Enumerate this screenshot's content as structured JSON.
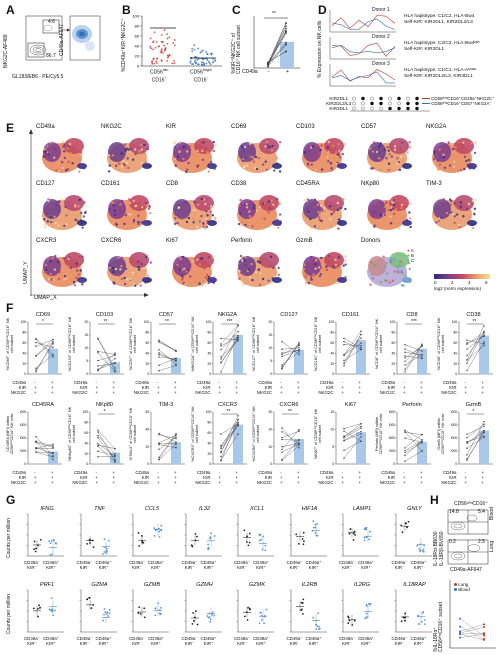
{
  "panels": {
    "A": {
      "letter": "A",
      "ylabel": "NKG2C-AF488",
      "xlabel": "GL183/EB6 - PE/Cy5.5",
      "gate_top": "4.6",
      "gate_bottom": "86.7",
      "ylabel2": "CD49a-AF647"
    },
    "B": {
      "letter": "B",
      "ylabel": "%CD49a⁺KIR⁺NKG2C⁺",
      "cat1_line1": "CD56",
      "cat1_sup1": "dim",
      "cat1_line2": "CD16",
      "cat1_sup2": "+",
      "cat2_line1": "CD56",
      "cat2_sup1": "bright",
      "cat2_line2": "CD16",
      "cat2_sup2": "-",
      "yticks": [
        "100",
        "80",
        "60",
        "40",
        "20",
        "0"
      ],
      "colors": {
        "group1": "#c0392b",
        "group2": "#2f6fb5"
      }
    },
    "C": {
      "letter": "C",
      "ylabel_line1": "%KIR⁺NKG2C⁺ of",
      "ylabel_line2": "CD16⁺ NK cell subset",
      "sig": "**",
      "xlabel": "CD49a",
      "x_minus": "-",
      "x_plus": "+",
      "yticks": [
        "100",
        "80",
        "60",
        "40",
        "20",
        "0"
      ]
    },
    "D": {
      "letter": "D",
      "ylabel": "% Expression on NK cells",
      "donors": [
        {
          "name": "Donor 1",
          "hla": "HLA haplotype: C1/C2, HLA-Bw4",
          "kir": "Self-KIR: KIR2DL1, KIR2DL2/L3"
        },
        {
          "name": "Donor 2",
          "hla": "HLA haplotype: C2/C2, HLA-Bw4ᴵᵍᴵᵒ",
          "kir": "Self-KIR: KIR2DL1"
        },
        {
          "name": "Donor 3",
          "hla": "HLA haplotype: C1/C1, HLA-Aˢᵘᵖᵉʳ",
          "kir": "Self-KIR: KIR2DL2/L3, KIR3DL1"
        }
      ],
      "rows": [
        "KIR2DL1",
        "KIR2DL2/L3",
        "KIR3DL1"
      ],
      "legend1": "CD56ᵈⁱᵐCD16⁺CD49a⁺NKG2C⁺",
      "legend2": "CD56ᵈⁱᵐCD16⁺CD57⁺NKG2A⁻",
      "colors": {
        "line1": "#c0392b",
        "line2": "#2f6fb5"
      }
    },
    "E": {
      "letter": "E",
      "axis_y": "UMAP_Y",
      "axis_x": "UMAP_X",
      "markers": [
        "CD49a",
        "NKG2C",
        "KIR",
        "CD69",
        "CD103",
        "CD57",
        "NKG2A",
        "CD127",
        "CD161",
        "CD8",
        "CD38",
        "CD45RA",
        "NKp80",
        "TIM-3",
        "CXCR3",
        "CXCR6",
        "Ki67",
        "Perforin",
        "GzmB",
        "Donors"
      ],
      "donor_legend": [
        "A",
        "B",
        "C"
      ],
      "colorbar_label": "log2 (norm expression)",
      "colorbar_ticks": [
        "0",
        "2",
        "4",
        "6"
      ]
    },
    "F": {
      "letter": "F",
      "row_labels": [
        "CD49a",
        "KIR",
        "NKG2C"
      ],
      "row_values": {
        "col1": [
          "-",
          "+",
          "+"
        ],
        "col2": [
          "+",
          "+",
          "+"
        ]
      },
      "plots": [
        {
          "title": "CD69",
          "ylabel": "%CD69⁺ of CD56ᵈⁱᵐCD16⁺ NK cell subset",
          "sig": "*",
          "yticks": [
            "100",
            "80",
            "60",
            "40",
            "20",
            "0"
          ]
        },
        {
          "title": "CD103",
          "ylabel": "%CD103⁺ of CD56ᵈⁱᵐCD16⁺ NK cell subset",
          "sig": "**",
          "yticks": [
            "20",
            "15",
            "10",
            "5",
            "0"
          ]
        },
        {
          "title": "CD57",
          "ylabel": "%CD57⁺ of CD56ᵈⁱᵐCD16⁺ NK cell subset",
          "sig": "**",
          "yticks": [
            "100",
            "80",
            "60",
            "40",
            "20",
            "0"
          ]
        },
        {
          "title": "NKG2A",
          "ylabel": "%NKG2A⁺ of CD56ᵈⁱᵐCD16⁺ NK cell subset",
          "sig": "***",
          "yticks": [
            "100",
            "80",
            "60",
            "40",
            "20",
            "0"
          ]
        },
        {
          "title": "CD127",
          "ylabel": "%CD127⁺ of CD56ᵈⁱᵐCD16⁺ NK cell subset",
          "sig": "",
          "yticks": [
            "20",
            "15",
            "10",
            "5",
            "0"
          ]
        },
        {
          "title": "CD161",
          "ylabel": "%CD161⁺ of CD56ᵈⁱᵐCD16⁺ NK cell subset",
          "sig": "",
          "yticks": [
            "100",
            "80",
            "60",
            "40",
            "20",
            "0"
          ]
        },
        {
          "title": "CD8",
          "ylabel": "%CD8⁺ of CD56ᵈⁱᵐCD16⁺ NK cell subset",
          "sig": "***",
          "yticks": [
            "100",
            "80",
            "60",
            "40",
            "20",
            "0"
          ]
        },
        {
          "title": "CD38",
          "ylabel": "%CD38⁺ of CD56ᵈⁱᵐCD16⁺ NK cell subset",
          "sig": "**",
          "yticks": [
            "100",
            "80",
            "60",
            "40",
            "20",
            "0"
          ]
        },
        {
          "title": "CD45RA",
          "ylabel": "CD45RA (MFI) within CD56ᵈⁱᵐCD16⁺ NK cells",
          "sig": "",
          "yticks": [
            "8000",
            "6000",
            "4000",
            "2000",
            "0"
          ]
        },
        {
          "title": "NKp80",
          "ylabel": "%NKp80⁺ of CD56ᵈⁱᵐCD16⁺ NK cell subset",
          "sig": "*",
          "yticks": [
            "100",
            "80",
            "60",
            "40",
            "20",
            "0"
          ]
        },
        {
          "title": "TIM-3",
          "ylabel": "%TIM-3⁺ of CD56ᵈⁱᵐCD16⁺ NK cell subset",
          "sig": "",
          "yticks": [
            "60",
            "40",
            "20",
            "0"
          ]
        },
        {
          "title": "CXCR3",
          "ylabel": "%CXCR3⁺ of CD56ᵈⁱᵐCD16⁺ NK cell subset",
          "sig": "**",
          "yticks": [
            "100",
            "80",
            "60",
            "40",
            "20",
            "0"
          ]
        },
        {
          "title": "CXCR6",
          "ylabel": "%CXCR6⁺ of CD56ᵈⁱᵐCD16⁺ NK cell subset",
          "sig": "**",
          "yticks": [
            "30",
            "20",
            "10",
            "0"
          ]
        },
        {
          "title": "Ki67",
          "ylabel": "%Ki67⁺ of CD56ᵈⁱᵐCD16⁺ NK cell subset",
          "sig": "",
          "yticks": [
            "15",
            "10",
            "5",
            "0"
          ]
        },
        {
          "title": "Perforin",
          "ylabel": "Perforin (MFI) within CD56ᵈⁱᵐCD16⁺ NK cells",
          "sig": "",
          "yticks": [
            "8000",
            "6000",
            "4000",
            "2000",
            "0"
          ]
        },
        {
          "title": "GzmB",
          "ylabel": "GzmB (MFI) within CD56ᵈⁱᵐCD16⁺ NK cells",
          "sig": "*",
          "yticks": [
            "8000",
            "6000",
            "4000",
            "2000",
            "0"
          ]
        }
      ]
    },
    "G": {
      "letter": "G",
      "ylabel": "Counts per million",
      "xcat1": "CD49a⁻\nKIR⁻",
      "xcat1_a": "CD49a⁻",
      "xcat1_b": "KIR⁻",
      "xcat2_a": "CD49a⁺",
      "xcat2_b": "KIR⁺",
      "genes_row1": [
        "IFNG",
        "TNF",
        "CCL5",
        "IL32",
        "XCL1",
        "HIF1A",
        "LAMP1",
        "GNLY"
      ],
      "genes_row2": [
        "PRF1",
        "GZMA",
        "GZMB",
        "GZMH",
        "GZMK",
        "IL2RB",
        "IL2RG",
        "IL18RAP"
      ]
    },
    "H": {
      "letter": "H",
      "top_title": "CD56ᵈⁱᵐCD16⁺",
      "gate1": "14.8",
      "gate2": "5.4",
      "gate3": "0.2",
      "gate4": "2.5",
      "ylabel_top": "IL-18Rα-BB630",
      "ylabel_top2": "IL-18Rβ-BV650",
      "xlabel_top": "CD49a-AF647",
      "tissue1": "Blood",
      "tissue2": "Lung",
      "legend_lung": "Lung",
      "legend_blood": "Blood",
      "ylabel_bottom_line1": "%IL-18Rα⁺",
      "ylabel_bottom_line2": "CD56ᵈⁱᵐCD16⁺ subset",
      "colors": {
        "lung": "#c0392b",
        "blood": "#2f6fb5"
      }
    }
  }
}
